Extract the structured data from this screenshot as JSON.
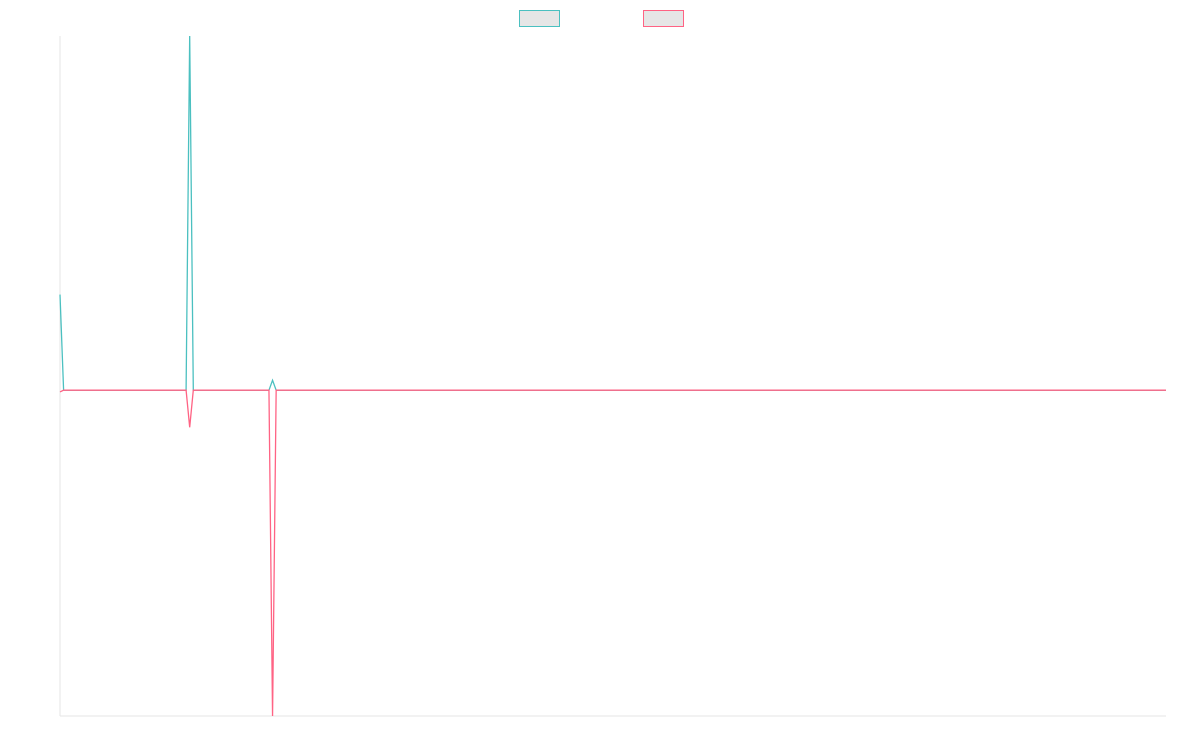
{
  "chart_data": {
    "type": "line",
    "x": [
      0,
      1,
      35,
      36,
      37,
      58,
      59,
      60,
      307
    ],
    "xlim": [
      0,
      307
    ],
    "ylim": [
      -9.2,
      10
    ],
    "series": [
      {
        "color": "#4bc0c0",
        "values": [
          2.7,
          0,
          0,
          10,
          0,
          0,
          0.28,
          0,
          0
        ]
      },
      {
        "color": "#ff6384",
        "values": [
          -0.05,
          0,
          0,
          -1.05,
          0,
          0,
          -9.2,
          0,
          0
        ]
      }
    ],
    "legend": "top"
  }
}
